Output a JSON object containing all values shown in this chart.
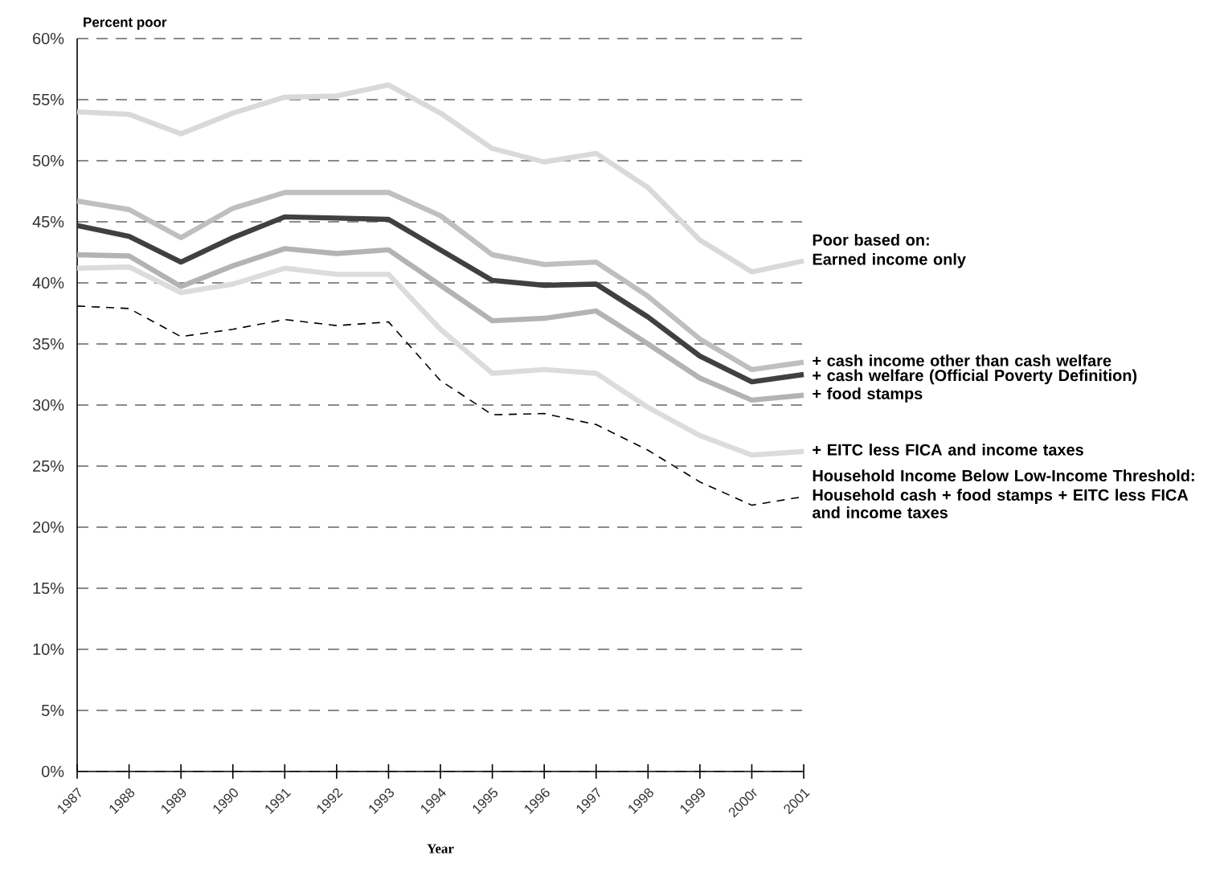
{
  "chart_data": {
    "type": "line",
    "ylabel": "Percent poor",
    "xlabel": "Year",
    "categories": [
      "1987",
      "1988",
      "1989",
      "1990",
      "1991",
      "1992",
      "1993",
      "1994",
      "1995",
      "1996",
      "1997",
      "1998",
      "1999",
      "2000r",
      "2001"
    ],
    "series": [
      {
        "name": "Earned income only",
        "color": "#d9d9d9",
        "values": [
          54.0,
          53.8,
          52.2,
          53.9,
          55.2,
          55.3,
          56.2,
          53.9,
          51.0,
          49.9,
          50.6,
          47.8,
          43.5,
          40.9,
          41.8
        ]
      },
      {
        "name": "+ cash income other than cash welfare",
        "color": "#bfbfbf",
        "values": [
          46.7,
          46.0,
          43.7,
          46.1,
          47.4,
          47.4,
          47.4,
          45.5,
          42.3,
          41.5,
          41.7,
          38.9,
          35.4,
          32.9,
          33.5
        ]
      },
      {
        "name": "+ cash welfare (Official Poverty Definition)",
        "color": "#404040",
        "values": [
          44.7,
          43.8,
          41.7,
          43.7,
          45.4,
          45.3,
          45.2,
          42.7,
          40.2,
          39.8,
          39.9,
          37.2,
          34.0,
          31.9,
          32.5
        ]
      },
      {
        "name": "+ food stamps",
        "color": "#b3b3b3",
        "values": [
          42.3,
          42.2,
          39.7,
          41.4,
          42.8,
          42.4,
          42.7,
          39.8,
          36.9,
          37.1,
          37.7,
          35.0,
          32.2,
          30.4,
          30.8
        ]
      },
      {
        "name": "+ EITC less FICA and income taxes",
        "color": "#dcdcdc",
        "values": [
          41.2,
          41.3,
          39.2,
          39.9,
          41.2,
          40.7,
          40.7,
          36.2,
          32.6,
          32.9,
          32.6,
          29.8,
          27.5,
          25.9,
          26.2
        ]
      },
      {
        "name": "Household cash + food stamps + EITC  less FICA and income taxes",
        "color": "#000000",
        "line_style": "dashed",
        "values": [
          38.1,
          37.9,
          35.6,
          36.2,
          37.0,
          36.5,
          36.8,
          32.0,
          29.2,
          29.3,
          28.4,
          26.3,
          23.7,
          21.8,
          22.5
        ]
      }
    ],
    "annotations": [
      "Poor based on:",
      "Household Income Below Low-Income Threshold:"
    ],
    "ylim": [
      0,
      60
    ],
    "yticks": [
      {
        "value": 0,
        "label": "0%"
      },
      {
        "value": 5,
        "label": "5%"
      },
      {
        "value": 10,
        "label": "10%"
      },
      {
        "value": 15,
        "label": "15%"
      },
      {
        "value": 20,
        "label": "20%"
      },
      {
        "value": 25,
        "label": "25%"
      },
      {
        "value": 30,
        "label": "30%"
      },
      {
        "value": 35,
        "label": "35%"
      },
      {
        "value": 40,
        "label": "40%"
      },
      {
        "value": 45,
        "label": "45%"
      },
      {
        "value": 50,
        "label": "50%"
      },
      {
        "value": 55,
        "label": "55%"
      },
      {
        "value": 60,
        "label": "60%"
      }
    ],
    "grid": "y",
    "marker": "none",
    "line_style": "solid"
  }
}
